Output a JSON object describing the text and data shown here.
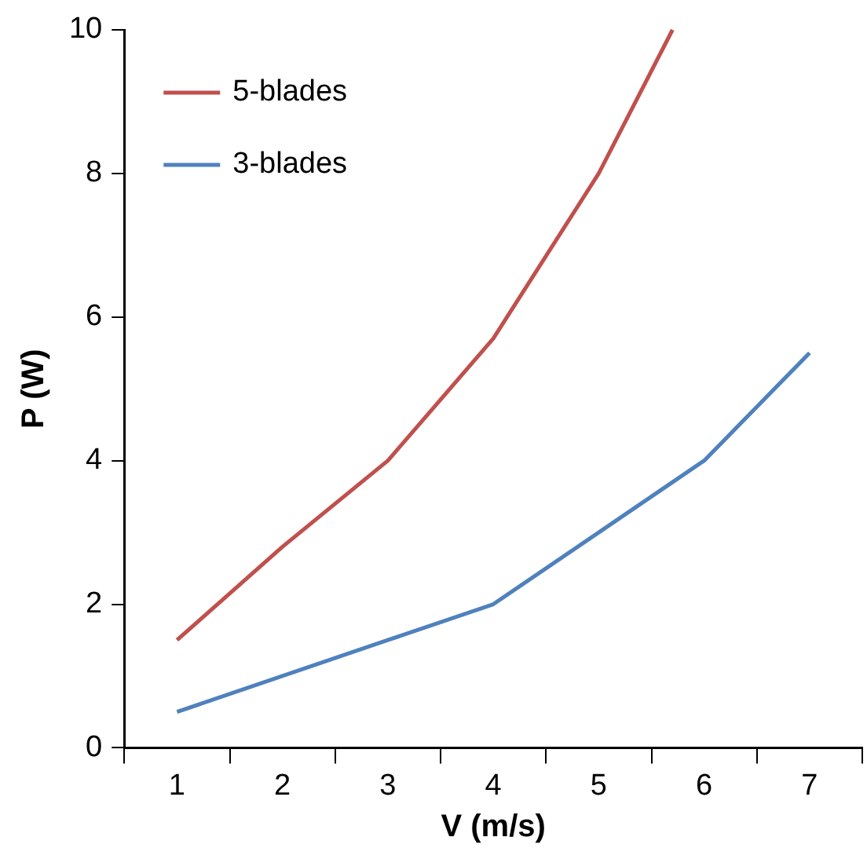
{
  "chart_data": {
    "type": "line",
    "xlabel": "V (m/s)",
    "ylabel": "P (W)",
    "xlim": [
      0.5,
      7.5
    ],
    "xticks": [
      {
        "value": 0.5,
        "label": null
      },
      {
        "value": 1,
        "label": "1"
      },
      {
        "value": 1.5,
        "label": null
      },
      {
        "value": 2,
        "label": "2"
      },
      {
        "value": 2.5,
        "label": null
      },
      {
        "value": 3,
        "label": "3"
      },
      {
        "value": 3.5,
        "label": null
      },
      {
        "value": 4,
        "label": "4"
      },
      {
        "value": 4.5,
        "label": null
      },
      {
        "value": 5,
        "label": "5"
      },
      {
        "value": 5.5,
        "label": null
      },
      {
        "value": 6,
        "label": "6"
      },
      {
        "value": 6.5,
        "label": null
      },
      {
        "value": 7,
        "label": "7"
      },
      {
        "value": 7.5,
        "label": null
      }
    ],
    "ylim": [
      0,
      10
    ],
    "yticks": [
      0,
      2,
      4,
      6,
      8,
      10
    ],
    "grid": false,
    "legend": "top left",
    "marker": "none",
    "line_style": "solid",
    "series": [
      {
        "name": "5-blades",
        "color": "#c0504d",
        "x": [
          1,
          2,
          3,
          4,
          5,
          5.7
        ],
        "values": [
          1.5,
          2.8,
          4.0,
          5.7,
          8.0,
          10
        ]
      },
      {
        "name": "3-blades",
        "color": "#4f81bd",
        "x": [
          1,
          2,
          3,
          4,
          5,
          6,
          7
        ],
        "values": [
          0.5,
          1.0,
          1.5,
          2.0,
          3.0,
          4.0,
          5.5
        ]
      }
    ]
  }
}
